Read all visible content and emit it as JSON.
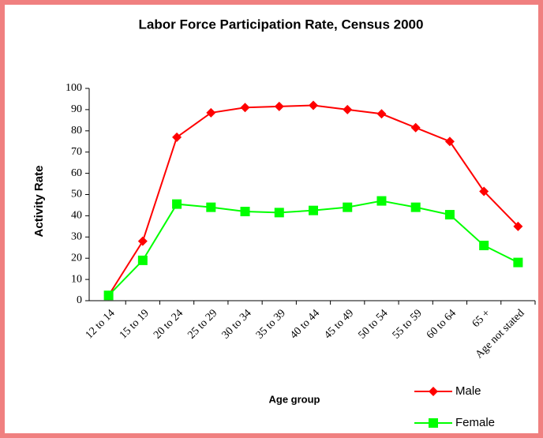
{
  "chart_data": {
    "type": "line",
    "title": "Labor Force Participation Rate, Census 2000",
    "x_label": "Age group",
    "y_label": "Activity Rate",
    "categories": [
      "12 to 14",
      "15 to 19",
      "20 to 24",
      "25 to 29",
      "30 to 34",
      "35 to 39",
      "40 to 44",
      "45 to 49",
      "50 to 54",
      "55 to 59",
      "60 to 64",
      "65 +",
      "Age not stated"
    ],
    "series": [
      {
        "name": "Male",
        "color": "#ff0000",
        "marker": "diamond",
        "values": [
          2.5,
          28,
          77,
          88.5,
          91,
          91.5,
          92,
          90,
          88,
          81.5,
          75,
          51.5,
          35
        ]
      },
      {
        "name": "Female",
        "color": "#00ff00",
        "marker": "square",
        "values": [
          2.5,
          19,
          45.5,
          44,
          42,
          41.5,
          42.5,
          44,
          47,
          44,
          40.5,
          26,
          18
        ]
      }
    ],
    "ylim": [
      0,
      100
    ],
    "yticks": [
      0,
      10,
      20,
      30,
      40,
      50,
      60,
      70,
      80,
      90,
      100
    ],
    "legend": "bottom-right"
  }
}
